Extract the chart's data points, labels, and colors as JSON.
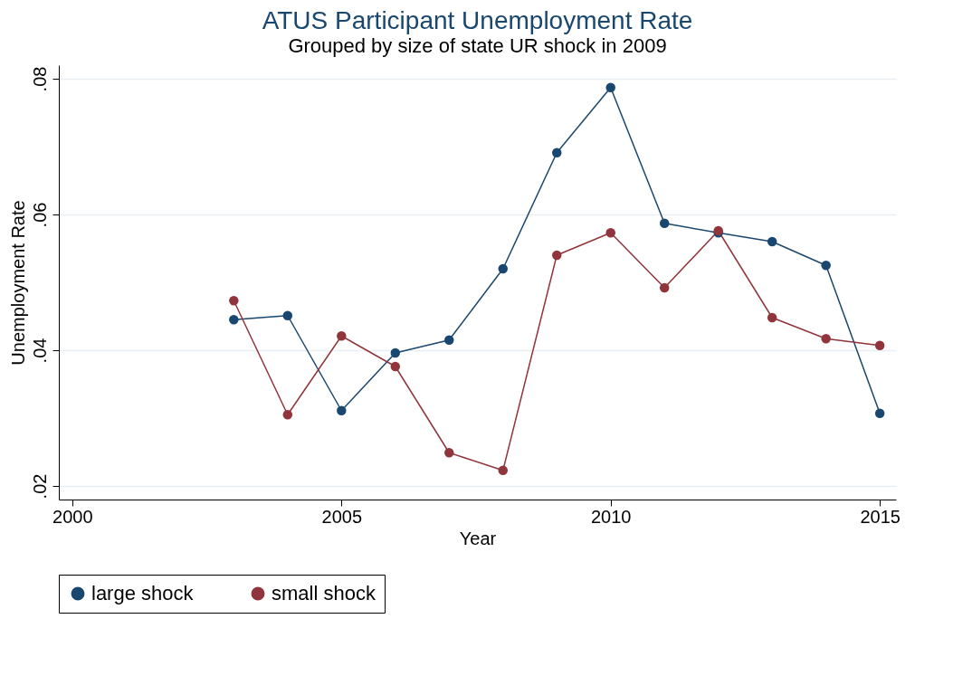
{
  "chart_data": {
    "type": "line",
    "title": "ATUS Participant Unemployment Rate",
    "subtitle": "Grouped by size of state UR shock in 2009",
    "xlabel": "Year",
    "ylabel": "Unemployment Rate",
    "x": [
      2003,
      2004,
      2005,
      2006,
      2007,
      2008,
      2009,
      2010,
      2011,
      2012,
      2013,
      2014,
      2015
    ],
    "series": [
      {
        "name": "large shock",
        "color": "#1a476f",
        "values": [
          0.0445,
          0.0451,
          0.0311,
          0.0396,
          0.0415,
          0.052,
          0.0691,
          0.0787,
          0.0587,
          0.0573,
          0.056,
          0.0525,
          0.0307
        ]
      },
      {
        "name": "small shock",
        "color": "#90353b",
        "values": [
          0.0473,
          0.0305,
          0.0421,
          0.0376,
          0.0249,
          0.0223,
          0.054,
          0.0573,
          0.0492,
          0.0576,
          0.0448,
          0.0417,
          0.0407
        ]
      }
    ],
    "xlim": [
      1999.75,
      2015.3
    ],
    "xticks": [
      2000,
      2005,
      2010,
      2015
    ],
    "ylim": [
      0.018,
      0.082
    ],
    "yticks": [
      {
        "value": 0.02,
        "label": ".02"
      },
      {
        "value": 0.04,
        "label": ".04"
      },
      {
        "value": 0.06,
        "label": ".06"
      },
      {
        "value": 0.08,
        "label": ".08"
      }
    ],
    "grid": "y",
    "legend": "bottom",
    "marker": "circle",
    "line_style": "solid"
  }
}
